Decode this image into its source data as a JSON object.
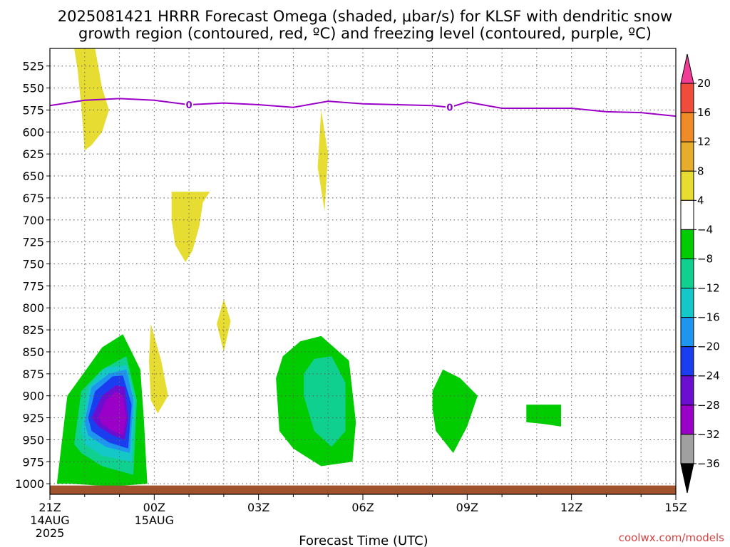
{
  "title": {
    "line1": "2025081421 HRRR Forecast Omega (shaded, μbar/s) for KLSF with dendritic snow",
    "line2": "growth region (contoured, red, ºC) and freezing level (contoured, purple, ºC)"
  },
  "credit": "coolwx.com/models",
  "chart_data": {
    "type": "heatmap",
    "xlabel": "Forecast Time (UTC)",
    "x_ticks": [
      {
        "hour": 0,
        "lines": [
          "21Z",
          "14AUG",
          "2025"
        ]
      },
      {
        "hour": 3,
        "lines": [
          "00Z",
          "15AUG"
        ]
      },
      {
        "hour": 6,
        "lines": [
          "03Z"
        ]
      },
      {
        "hour": 9,
        "lines": [
          "06Z"
        ]
      },
      {
        "hour": 12,
        "lines": [
          "09Z"
        ]
      },
      {
        "hour": 15,
        "lines": [
          "12Z"
        ]
      },
      {
        "hour": 18,
        "lines": [
          "15Z"
        ]
      }
    ],
    "xlim": [
      0,
      18
    ],
    "ylim": [
      1012,
      505
    ],
    "y_ticks": [
      525,
      550,
      575,
      600,
      625,
      650,
      675,
      700,
      725,
      750,
      775,
      800,
      825,
      850,
      875,
      900,
      925,
      950,
      975,
      1000
    ],
    "grid": true,
    "colorbar": {
      "levels": [
        -36,
        -32,
        -28,
        -24,
        -20,
        -16,
        -12,
        -8,
        -4,
        4,
        8,
        12,
        16,
        20
      ],
      "labels": [
        "20",
        "16",
        "12",
        "8",
        "4",
        "−4",
        "−8",
        "−12",
        "−16",
        "−20",
        "−24",
        "−28",
        "−32",
        "−36"
      ],
      "colors": [
        "#000000",
        "#a0a0a0",
        "#9b00c8",
        "#6a0fd0",
        "#1a3df0",
        "#1e96f0",
        "#14c8c8",
        "#10d090",
        "#00cc00",
        "#ffffff",
        "#e6dc32",
        "#e6ac2c",
        "#f08c28",
        "#f04c3c",
        "#f03c96"
      ]
    },
    "freezing_level": {
      "label": "0",
      "points": [
        [
          0,
          570
        ],
        [
          1,
          564
        ],
        [
          2,
          562
        ],
        [
          3,
          564
        ],
        [
          4,
          569
        ],
        [
          5,
          567
        ],
        [
          6,
          569
        ],
        [
          7,
          572
        ],
        [
          8,
          565
        ],
        [
          9,
          568
        ],
        [
          10,
          569
        ],
        [
          11,
          570
        ],
        [
          11.5,
          572
        ],
        [
          12,
          566
        ],
        [
          13,
          573
        ],
        [
          14,
          573
        ],
        [
          15,
          573
        ],
        [
          16,
          577
        ],
        [
          17,
          578
        ],
        [
          18,
          582
        ]
      ],
      "label_at": [
        4.0,
        11.5
      ]
    },
    "omega_regions": [
      {
        "name": "upward-4",
        "color": "#00cc00",
        "points": [
          [
            0.2,
            1000
          ],
          [
            0.5,
            900
          ],
          [
            1.5,
            845
          ],
          [
            2.1,
            830
          ],
          [
            2.6,
            870
          ],
          [
            2.7,
            925
          ],
          [
            2.8,
            1000
          ],
          [
            1.8,
            1003
          ],
          [
            0.6,
            1000
          ]
        ]
      },
      {
        "name": "upward-8",
        "color": "#10d090",
        "points": [
          [
            0.7,
            955
          ],
          [
            0.9,
            895
          ],
          [
            1.5,
            870
          ],
          [
            2.2,
            855
          ],
          [
            2.5,
            905
          ],
          [
            2.4,
            990
          ],
          [
            1.5,
            980
          ],
          [
            0.9,
            965
          ]
        ]
      },
      {
        "name": "upward-12",
        "color": "#14c8c8",
        "points": [
          [
            0.9,
            940
          ],
          [
            1.1,
            890
          ],
          [
            1.6,
            868
          ],
          [
            2.2,
            865
          ],
          [
            2.45,
            905
          ],
          [
            2.35,
            975
          ],
          [
            1.5,
            968
          ],
          [
            1.0,
            955
          ]
        ]
      },
      {
        "name": "upward-16",
        "color": "#1e96f0",
        "points": [
          [
            1.0,
            930
          ],
          [
            1.2,
            890
          ],
          [
            1.7,
            875
          ],
          [
            2.2,
            870
          ],
          [
            2.4,
            905
          ],
          [
            2.3,
            965
          ],
          [
            1.6,
            958
          ],
          [
            1.1,
            945
          ]
        ]
      },
      {
        "name": "upward-20",
        "color": "#1a3df0",
        "points": [
          [
            1.1,
            925
          ],
          [
            1.3,
            895
          ],
          [
            1.8,
            878
          ],
          [
            2.1,
            877
          ],
          [
            2.35,
            910
          ],
          [
            2.25,
            960
          ],
          [
            1.7,
            953
          ],
          [
            1.2,
            940
          ]
        ]
      },
      {
        "name": "upward-24",
        "color": "#6a0fd0",
        "points": [
          [
            1.2,
            925
          ],
          [
            1.5,
            900
          ],
          [
            1.9,
            888
          ],
          [
            2.15,
            890
          ],
          [
            2.25,
            925
          ],
          [
            2.15,
            950
          ],
          [
            1.8,
            945
          ],
          [
            1.4,
            935
          ]
        ]
      },
      {
        "name": "upward-28",
        "color": "#9b00c8",
        "points": [
          [
            1.4,
            925
          ],
          [
            1.6,
            905
          ],
          [
            1.9,
            895
          ],
          [
            2.1,
            900
          ],
          [
            2.2,
            925
          ],
          [
            2.1,
            945
          ],
          [
            1.8,
            940
          ],
          [
            1.5,
            932
          ]
        ]
      },
      {
        "name": "downward-top",
        "color": "#e6dc32",
        "points": [
          [
            0.7,
            505
          ],
          [
            1.3,
            505
          ],
          [
            1.5,
            550
          ],
          [
            1.7,
            575
          ],
          [
            1.5,
            600
          ],
          [
            1.2,
            615
          ],
          [
            1.0,
            621
          ],
          [
            0.9,
            570
          ],
          [
            0.8,
            530
          ]
        ]
      },
      {
        "name": "downward-mid",
        "color": "#e6dc32",
        "points": [
          [
            3.5,
            668
          ],
          [
            4.6,
            668
          ],
          [
            4.4,
            680
          ],
          [
            4.3,
            707
          ],
          [
            4.1,
            735
          ],
          [
            3.9,
            748
          ],
          [
            3.6,
            728
          ],
          [
            3.5,
            700
          ]
        ]
      },
      {
        "name": "downward-small",
        "color": "#e6dc32",
        "points": [
          [
            5.0,
            790
          ],
          [
            5.2,
            815
          ],
          [
            5.0,
            850
          ],
          [
            4.8,
            818
          ]
        ]
      },
      {
        "name": "downward-low",
        "color": "#e6dc32",
        "points": [
          [
            2.9,
            818
          ],
          [
            3.2,
            860
          ],
          [
            3.4,
            900
          ],
          [
            3.1,
            920
          ],
          [
            2.9,
            905
          ],
          [
            2.85,
            860
          ]
        ]
      },
      {
        "name": "downward-thin",
        "color": "#e6dc32",
        "points": [
          [
            7.8,
            575
          ],
          [
            8.0,
            625
          ],
          [
            7.9,
            690
          ],
          [
            7.7,
            640
          ]
        ]
      },
      {
        "name": "upward-mid",
        "color": "#00cc00",
        "points": [
          [
            6.5,
            880
          ],
          [
            6.7,
            855
          ],
          [
            7.2,
            838
          ],
          [
            7.8,
            832
          ],
          [
            8.6,
            860
          ],
          [
            8.8,
            930
          ],
          [
            8.7,
            975
          ],
          [
            7.8,
            980
          ],
          [
            7.0,
            960
          ],
          [
            6.6,
            940
          ]
        ]
      },
      {
        "name": "upward-mid-inner",
        "color": "#10d090",
        "points": [
          [
            7.3,
            875
          ],
          [
            7.6,
            858
          ],
          [
            8.1,
            855
          ],
          [
            8.5,
            885
          ],
          [
            8.5,
            940
          ],
          [
            8.1,
            958
          ],
          [
            7.6,
            940
          ],
          [
            7.3,
            900
          ]
        ]
      },
      {
        "name": "upward-right",
        "color": "#00cc00",
        "points": [
          [
            11.0,
            895
          ],
          [
            11.3,
            870
          ],
          [
            11.8,
            880
          ],
          [
            12.3,
            900
          ],
          [
            12.0,
            935
          ],
          [
            11.6,
            965
          ],
          [
            11.1,
            940
          ],
          [
            11.0,
            915
          ]
        ]
      },
      {
        "name": "upward-far",
        "color": "#00cc00",
        "points": [
          [
            13.7,
            910
          ],
          [
            14.7,
            910
          ],
          [
            14.7,
            935
          ],
          [
            14.2,
            932
          ],
          [
            13.7,
            930
          ]
        ]
      }
    ],
    "surface": {
      "name": "ground",
      "color": "#a0522d",
      "top_pressure": 1002
    }
  }
}
